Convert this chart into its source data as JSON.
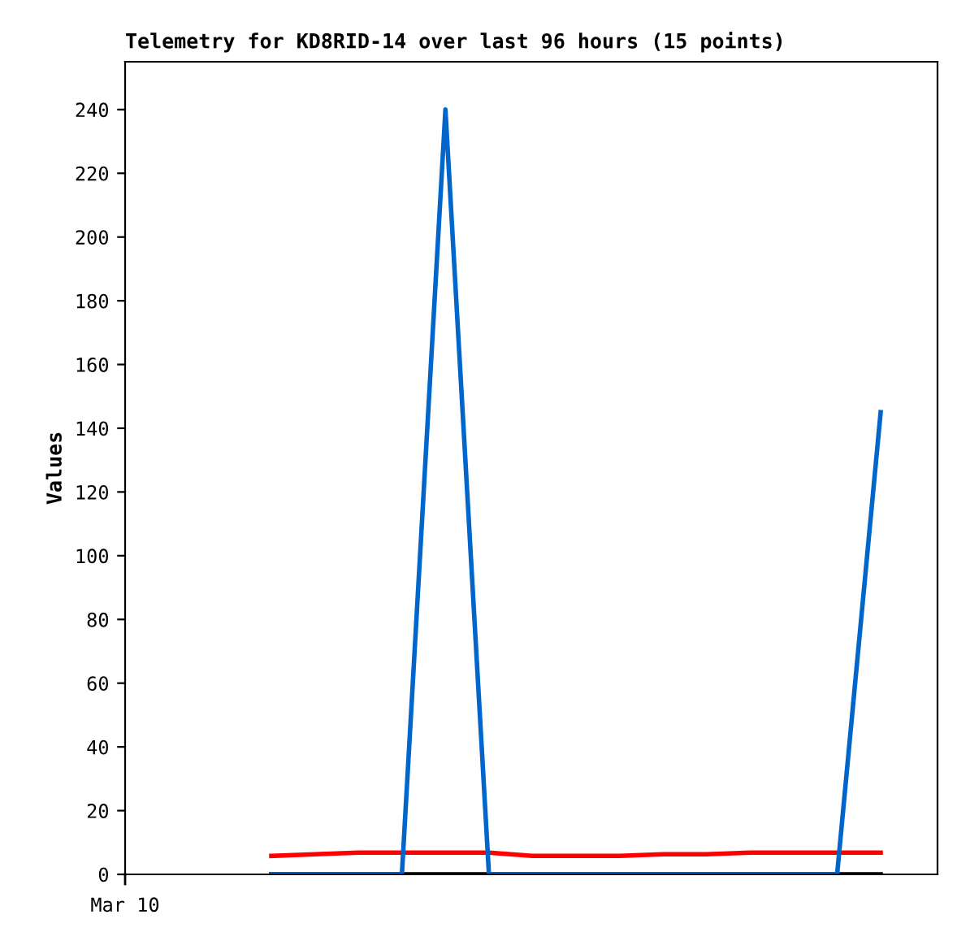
{
  "chart_data": {
    "type": "line",
    "title": "Telemetry for KD8RID-14 over last 96 hours (15 points)",
    "ylabel": "Values",
    "categories": [
      null,
      null,
      null,
      null,
      null,
      null,
      null,
      null,
      null,
      null,
      null,
      null,
      null,
      null,
      null
    ],
    "annotations": [
      "Mar 10"
    ],
    "ylim": [
      0,
      255
    ],
    "yticks": [
      0,
      20,
      40,
      60,
      80,
      100,
      120,
      140,
      160,
      180,
      200,
      220,
      240
    ],
    "series": [
      {
        "color": "#000000",
        "values": [
          0,
          0,
          0,
          0,
          0,
          0,
          0,
          0,
          0,
          0,
          0,
          0,
          0,
          0,
          0
        ]
      },
      {
        "color": "#ff0000",
        "values": [
          5.8,
          6.3,
          6.8,
          6.8,
          6.8,
          6.8,
          5.8,
          5.8,
          5.8,
          6.3,
          6.3,
          6.8,
          6.8,
          6.8,
          6.8
        ]
      },
      {
        "color": "#0066cc",
        "values": [
          0,
          0,
          0,
          0,
          240,
          0,
          0,
          0,
          0,
          0,
          0,
          0,
          0,
          0,
          145
        ]
      }
    ],
    "grid": false,
    "legend": false
  }
}
